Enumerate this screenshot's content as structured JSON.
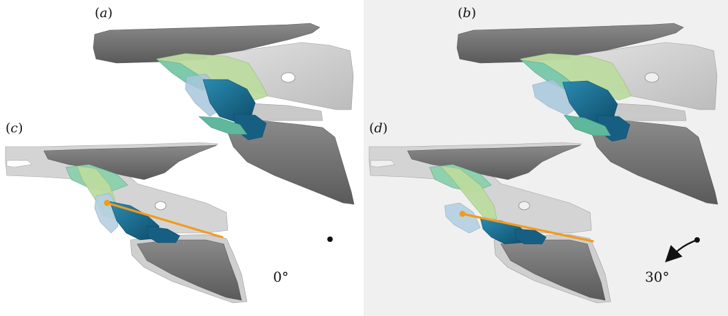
{
  "panels": {
    "a": {
      "letter": "a"
    },
    "b": {
      "letter": "b"
    },
    "c": {
      "letter": "c"
    },
    "d": {
      "letter": "d"
    }
  },
  "angles": {
    "left": "0°",
    "right": "30°"
  },
  "colors": {
    "dark_bone": "#6e6e6e",
    "light_bone": "#cfcfcf",
    "green_muscle": "#b8d99a",
    "teal_muscle": "#6bbfa5",
    "blue_muscle": "#1f6f94",
    "dark_blue_muscle": "#145a7a",
    "light_blue_muscle": "#a8c7dc",
    "orange_line": "#f39a1e",
    "background_right": "#f0f0f0"
  },
  "icons": {
    "rotation_axis_dot": "dot-icon",
    "rotation_arrow": "curved-arrow-icon"
  }
}
